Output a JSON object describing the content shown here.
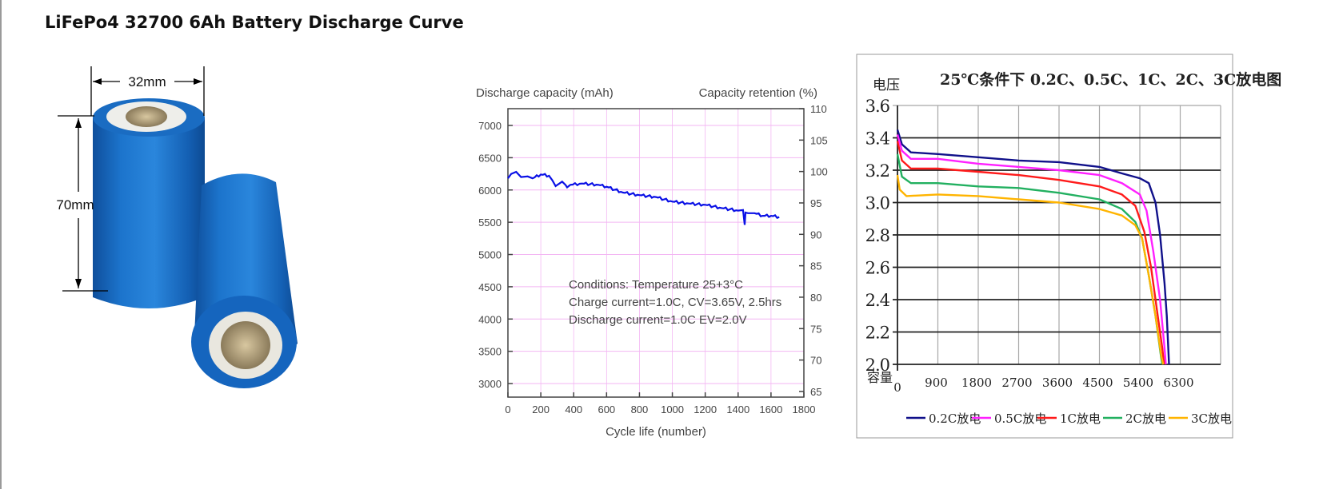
{
  "page": {
    "title": "LiFePo4 32700 6Ah Battery Discharge Curve"
  },
  "product_image": {
    "width_label": "32mm",
    "height_label": "70mm",
    "body_color": "#1a6fc4"
  },
  "chart_data": [
    {
      "type": "line",
      "ylabel": "Discharge capacity (mAh)",
      "ylabel_right": "Capacity retention (%)",
      "xlabel": "Cycle life (number)",
      "xlim": [
        0,
        1800
      ],
      "ylim": [
        2790,
        7260
      ],
      "ylim_right": [
        64.1,
        110
      ],
      "xticks": [
        0,
        200,
        400,
        600,
        800,
        1000,
        1200,
        1400,
        1600,
        1800
      ],
      "yticks": [
        3000,
        3500,
        4000,
        4500,
        5000,
        5500,
        6000,
        6500,
        7000
      ],
      "yticks_right": [
        65,
        70,
        75,
        80,
        85,
        90,
        95,
        100,
        105,
        110
      ],
      "grid": true,
      "grid_color": "#f3b6f3",
      "annotations": [
        "Conditions: Temperature 25+3°C",
        "Charge current=1.0C, CV=3.65V, 2.5hrs",
        "Discharge current=1.0C EV=2.0V"
      ],
      "series": [
        {
          "color": "#0a10e6",
          "x": [
            0,
            20,
            50,
            80,
            120,
            150,
            200,
            250,
            270,
            290,
            330,
            350,
            360,
            380,
            450,
            550,
            600,
            700,
            800,
            900,
            1000,
            1100,
            1200,
            1300,
            1400,
            1430,
            1440,
            1445,
            1460,
            1500,
            1550,
            1600,
            1650
          ],
          "y": [
            6180,
            6250,
            6280,
            6200,
            6210,
            6180,
            6240,
            6220,
            6150,
            6060,
            6130,
            6080,
            6040,
            6080,
            6100,
            6080,
            6050,
            5960,
            5920,
            5890,
            5820,
            5790,
            5770,
            5720,
            5680,
            5690,
            5460,
            5650,
            5640,
            5640,
            5600,
            5600,
            5580
          ]
        }
      ]
    },
    {
      "type": "line",
      "title": "25℃条件下 0.2C、0.5C、1C、2C、3C放电图",
      "ylabel": "电压",
      "xlabel": "容量",
      "xlim": [
        0,
        7200
      ],
      "ylim": [
        2.0,
        3.6
      ],
      "xticks": [
        0,
        900,
        1800,
        2700,
        3600,
        4500,
        5400,
        6300
      ],
      "yticks": [
        "2.0",
        "2.2",
        "2.4",
        "2.6",
        "2.8",
        "3.0",
        "3.2",
        "3.4",
        "3.6"
      ],
      "grid": true,
      "legend": "bottom",
      "series": [
        {
          "name": "0.2C放电",
          "color": "#10108a",
          "x": [
            0,
            100,
            300,
            900,
            1800,
            2700,
            3600,
            4500,
            5000,
            5400,
            5600,
            5750,
            5850,
            5950,
            6000,
            6050
          ],
          "y": [
            3.45,
            3.36,
            3.31,
            3.3,
            3.28,
            3.26,
            3.25,
            3.22,
            3.18,
            3.15,
            3.12,
            3.0,
            2.8,
            2.5,
            2.3,
            2.0
          ]
        },
        {
          "name": "0.5C放电",
          "color": "#ff20ff",
          "x": [
            0,
            100,
            300,
            900,
            1800,
            2700,
            3600,
            4500,
            5000,
            5400,
            5550,
            5700,
            5850,
            5950,
            5980
          ],
          "y": [
            3.42,
            3.32,
            3.27,
            3.27,
            3.24,
            3.22,
            3.2,
            3.17,
            3.12,
            3.05,
            2.95,
            2.7,
            2.4,
            2.1,
            2.0
          ]
        },
        {
          "name": "1C放电",
          "color": "#ff1a1a",
          "x": [
            0,
            100,
            300,
            900,
            1800,
            2700,
            3600,
            4500,
            5000,
            5300,
            5500,
            5650,
            5800,
            5900,
            5940
          ],
          "y": [
            3.38,
            3.26,
            3.21,
            3.21,
            3.19,
            3.17,
            3.14,
            3.1,
            3.05,
            2.98,
            2.82,
            2.6,
            2.3,
            2.1,
            2.0
          ]
        },
        {
          "name": "2C放电",
          "color": "#22b060",
          "x": [
            0,
            100,
            300,
            900,
            1800,
            2700,
            3600,
            4500,
            5000,
            5300,
            5450,
            5600,
            5750,
            5870,
            5900
          ],
          "y": [
            3.3,
            3.16,
            3.12,
            3.12,
            3.1,
            3.09,
            3.06,
            3.02,
            2.96,
            2.88,
            2.78,
            2.55,
            2.3,
            2.05,
            2.0
          ]
        },
        {
          "name": "3C放电",
          "color": "#ffb400",
          "x": [
            0,
            50,
            200,
            900,
            1800,
            2700,
            3600,
            4500,
            5000,
            5300,
            5450,
            5600,
            5750,
            5880,
            5920
          ],
          "y": [
            3.17,
            3.08,
            3.04,
            3.05,
            3.04,
            3.02,
            3.0,
            2.96,
            2.92,
            2.86,
            2.78,
            2.55,
            2.3,
            2.05,
            2.0
          ]
        }
      ]
    }
  ]
}
